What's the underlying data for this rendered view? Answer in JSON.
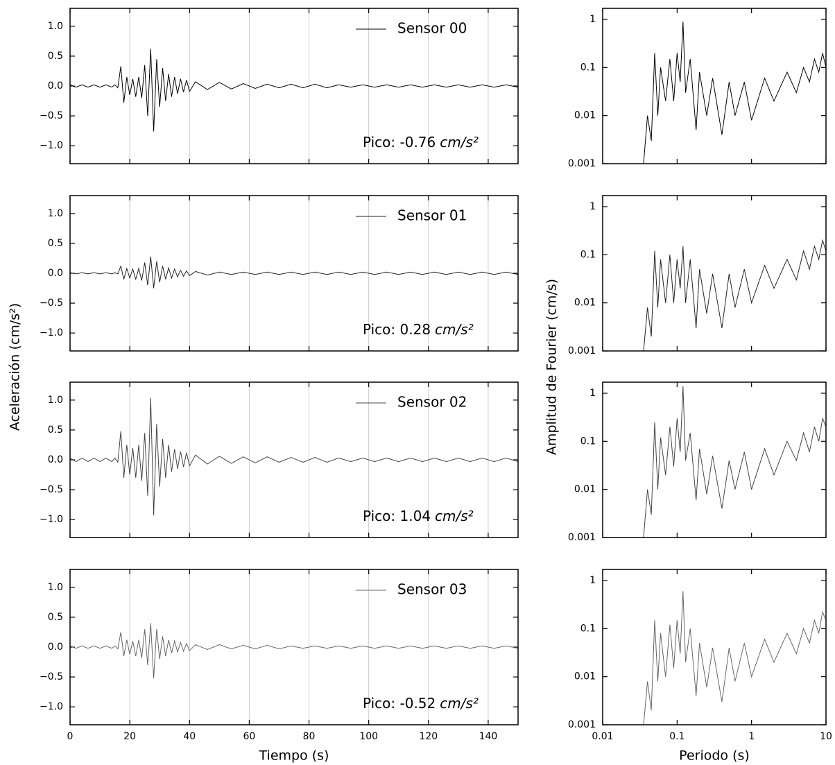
{
  "labels": {
    "acc": "Aceleración (cm/s²)",
    "time": "Tiempo (s)",
    "fourier": "Amplitud de Fourier (cm/s)",
    "period": "Periodo (s)"
  },
  "chart_data": [
    {
      "type": "line",
      "x": [
        0,
        2,
        4,
        6,
        8,
        10,
        12,
        14,
        15,
        16,
        17,
        18,
        19,
        20,
        21,
        22,
        23,
        24,
        25,
        26,
        27,
        28,
        29,
        30,
        31,
        32,
        33,
        34,
        35,
        36,
        37,
        38,
        39,
        40,
        42,
        46,
        50,
        54,
        58,
        62,
        66,
        70,
        74,
        78,
        82,
        86,
        90,
        94,
        98,
        102,
        106,
        110,
        114,
        118,
        122,
        126,
        130,
        134,
        138,
        142,
        146,
        150
      ],
      "series": [
        {
          "name": "Sensor 00",
          "color": "#000000",
          "values": [
            0.02,
            -0.02,
            0.02,
            -0.02,
            0.02,
            -0.02,
            0.02,
            -0.02,
            0.02,
            -0.03,
            0.33,
            -0.28,
            0.15,
            -0.15,
            0.12,
            -0.18,
            0.15,
            -0.2,
            0.35,
            -0.5,
            0.62,
            -0.76,
            0.45,
            -0.35,
            0.3,
            -0.25,
            0.2,
            -0.18,
            0.15,
            -0.13,
            0.12,
            -0.1,
            0.1,
            -0.09,
            0.07,
            -0.06,
            0.06,
            -0.05,
            0.04,
            -0.04,
            0.03,
            -0.03,
            0.03,
            -0.03,
            0.03,
            -0.03,
            0.02,
            -0.02,
            0.02,
            -0.02,
            0.02,
            -0.02,
            0.02,
            -0.02,
            0.02,
            -0.02,
            0.02,
            -0.02,
            0.02,
            -0.02,
            0.02,
            -0.02
          ]
        }
      ],
      "xlim": [
        0,
        150
      ],
      "ylim": [
        -1.3,
        1.3
      ],
      "xticks": [
        0,
        20,
        40,
        60,
        80,
        100,
        120,
        140
      ],
      "yticks": [
        {
          "value": -1,
          "label": "−1.0"
        },
        {
          "value": -0.5,
          "label": "−0.5"
        },
        {
          "value": 0,
          "label": "0.0"
        },
        0.5,
        {
          "value": 1,
          "label": "1.0"
        }
      ],
      "grid": true,
      "peak_label": "Pico: -0.76",
      "peak_unit": "cm/s²"
    },
    {
      "type": "line",
      "x": [
        0,
        2,
        4,
        6,
        8,
        10,
        12,
        14,
        15,
        16,
        17,
        18,
        19,
        20,
        21,
        22,
        23,
        24,
        25,
        26,
        27,
        28,
        29,
        30,
        31,
        32,
        33,
        34,
        35,
        36,
        37,
        38,
        39,
        40,
        42,
        46,
        50,
        54,
        58,
        62,
        66,
        70,
        74,
        78,
        82,
        86,
        90,
        94,
        98,
        102,
        106,
        110,
        114,
        118,
        122,
        126,
        130,
        134,
        138,
        142,
        146,
        150
      ],
      "series": [
        {
          "name": "Sensor 01",
          "color": "#222222",
          "values": [
            0.01,
            -0.01,
            0.01,
            -0.01,
            0.01,
            -0.01,
            0.01,
            -0.01,
            0.01,
            -0.01,
            0.12,
            -0.1,
            0.08,
            -0.08,
            0.07,
            -0.1,
            0.08,
            -0.12,
            0.18,
            -0.2,
            0.28,
            -0.25,
            0.2,
            -0.15,
            0.12,
            -0.1,
            0.09,
            -0.08,
            0.07,
            -0.06,
            0.05,
            -0.05,
            0.04,
            -0.04,
            0.03,
            -0.03,
            0.02,
            -0.02,
            0.02,
            -0.02,
            0.02,
            -0.02,
            0.02,
            -0.02,
            0.02,
            -0.02,
            0.02,
            -0.02,
            0.02,
            -0.02,
            0.02,
            -0.02,
            0.02,
            -0.02,
            0.02,
            -0.02,
            0.02,
            -0.02,
            0.02,
            -0.02,
            0.02,
            -0.02
          ]
        }
      ],
      "xlim": [
        0,
        150
      ],
      "ylim": [
        -1.3,
        1.3
      ],
      "xticks": [
        0,
        20,
        40,
        60,
        80,
        100,
        120,
        140
      ],
      "yticks": [
        {
          "value": -1,
          "label": "−1.0"
        },
        {
          "value": -0.5,
          "label": "−0.5"
        },
        {
          "value": 0,
          "label": "0.0"
        },
        0.5,
        {
          "value": 1,
          "label": "1.0"
        }
      ],
      "grid": true,
      "peak_label": "Pico: 0.28",
      "peak_unit": "cm/s²"
    },
    {
      "type": "line",
      "x": [
        0,
        2,
        4,
        6,
        8,
        10,
        12,
        14,
        15,
        16,
        17,
        18,
        19,
        20,
        21,
        22,
        23,
        24,
        25,
        26,
        27,
        28,
        29,
        30,
        31,
        32,
        33,
        34,
        35,
        36,
        37,
        38,
        39,
        40,
        42,
        46,
        50,
        54,
        58,
        62,
        66,
        70,
        74,
        78,
        82,
        86,
        90,
        94,
        98,
        102,
        106,
        110,
        114,
        118,
        122,
        126,
        130,
        134,
        138,
        142,
        146,
        150
      ],
      "series": [
        {
          "name": "Sensor 02",
          "color": "#444444",
          "values": [
            0.03,
            -0.03,
            0.03,
            -0.03,
            0.03,
            -0.03,
            0.03,
            -0.03,
            0.03,
            -0.04,
            0.48,
            -0.3,
            0.25,
            -0.25,
            0.2,
            -0.3,
            0.25,
            -0.35,
            0.45,
            -0.6,
            1.04,
            -0.93,
            0.6,
            -0.45,
            0.35,
            -0.3,
            0.25,
            -0.2,
            0.18,
            -0.15,
            0.14,
            -0.12,
            0.12,
            -0.1,
            0.08,
            -0.07,
            0.06,
            -0.06,
            0.05,
            -0.05,
            0.05,
            -0.04,
            0.04,
            -0.04,
            0.04,
            -0.04,
            0.03,
            -0.03,
            0.03,
            -0.03,
            0.03,
            -0.03,
            0.03,
            -0.03,
            0.03,
            -0.03,
            0.03,
            -0.03,
            0.03,
            -0.03,
            0.03,
            -0.03
          ]
        }
      ],
      "xlim": [
        0,
        150
      ],
      "ylim": [
        -1.3,
        1.3
      ],
      "xticks": [
        0,
        20,
        40,
        60,
        80,
        100,
        120,
        140
      ],
      "yticks": [
        {
          "value": -1,
          "label": "−1.0"
        },
        {
          "value": -0.5,
          "label": "−0.5"
        },
        {
          "value": 0,
          "label": "0.0"
        },
        0.5,
        {
          "value": 1,
          "label": "1.0"
        }
      ],
      "grid": true,
      "peak_label": "Pico: 1.04",
      "peak_unit": "cm/s²"
    },
    {
      "type": "line",
      "x": [
        0,
        2,
        4,
        6,
        8,
        10,
        12,
        14,
        15,
        16,
        17,
        18,
        19,
        20,
        21,
        22,
        23,
        24,
        25,
        26,
        27,
        28,
        29,
        30,
        31,
        32,
        33,
        34,
        35,
        36,
        37,
        38,
        39,
        40,
        42,
        46,
        50,
        54,
        58,
        62,
        66,
        70,
        74,
        78,
        82,
        86,
        90,
        94,
        98,
        102,
        106,
        110,
        114,
        118,
        122,
        126,
        130,
        134,
        138,
        142,
        146,
        150
      ],
      "series": [
        {
          "name": "Sensor 03",
          "color": "#666666",
          "values": [
            0.02,
            -0.02,
            0.02,
            -0.02,
            0.02,
            -0.02,
            0.02,
            -0.02,
            0.02,
            -0.03,
            0.25,
            -0.15,
            0.12,
            -0.12,
            0.1,
            -0.15,
            0.12,
            -0.18,
            0.3,
            -0.3,
            0.4,
            -0.52,
            0.3,
            -0.2,
            0.18,
            -0.15,
            0.12,
            -0.1,
            0.1,
            -0.08,
            0.08,
            -0.07,
            0.06,
            -0.06,
            0.04,
            -0.04,
            0.04,
            -0.03,
            0.03,
            -0.03,
            0.03,
            -0.03,
            0.02,
            -0.02,
            0.02,
            -0.02,
            0.02,
            -0.02,
            0.02,
            -0.02,
            0.02,
            -0.02,
            0.02,
            -0.02,
            0.02,
            -0.02,
            0.02,
            -0.02,
            0.02,
            -0.02,
            0.02,
            -0.02
          ]
        }
      ],
      "xlim": [
        0,
        150
      ],
      "ylim": [
        -1.3,
        1.3
      ],
      "xticks": [
        0,
        20,
        40,
        60,
        80,
        100,
        120,
        140
      ],
      "yticks": [
        {
          "value": -1,
          "label": "−1.0"
        },
        {
          "value": -0.5,
          "label": "−0.5"
        },
        {
          "value": 0,
          "label": "0.0"
        },
        0.5,
        {
          "value": 1,
          "label": "1.0"
        }
      ],
      "grid": true,
      "peak_label": "Pico: -0.52",
      "peak_unit": "cm/s²"
    },
    {
      "type": "line",
      "xlog": true,
      "ylog": true,
      "x": [
        0.035,
        0.04,
        0.045,
        0.05,
        0.055,
        0.06,
        0.07,
        0.08,
        0.09,
        0.1,
        0.11,
        0.12,
        0.13,
        0.15,
        0.18,
        0.2,
        0.25,
        0.3,
        0.4,
        0.5,
        0.6,
        0.8,
        1,
        1.5,
        2,
        3,
        4,
        5,
        6,
        7,
        8,
        9,
        10
      ],
      "series": [
        {
          "name": "Sensor 00",
          "color": "#000000",
          "values": [
            0.0008,
            0.01,
            0.003,
            0.2,
            0.01,
            0.1,
            0.02,
            0.15,
            0.02,
            0.2,
            0.05,
            0.9,
            0.03,
            0.15,
            0.005,
            0.08,
            0.01,
            0.06,
            0.004,
            0.05,
            0.01,
            0.05,
            0.008,
            0.06,
            0.02,
            0.08,
            0.03,
            0.1,
            0.05,
            0.15,
            0.08,
            0.2,
            0.1
          ]
        }
      ],
      "xlim": [
        0.01,
        10
      ],
      "ylim": [
        0.001,
        1.7
      ],
      "xticks": [
        0.01,
        0.1,
        1,
        10
      ],
      "yticks": [
        0.001,
        0.01,
        0.1,
        1
      ]
    },
    {
      "type": "line",
      "xlog": true,
      "ylog": true,
      "x": [
        0.035,
        0.04,
        0.045,
        0.05,
        0.055,
        0.06,
        0.07,
        0.08,
        0.09,
        0.1,
        0.11,
        0.12,
        0.13,
        0.15,
        0.18,
        0.2,
        0.25,
        0.3,
        0.4,
        0.5,
        0.6,
        0.8,
        1,
        1.5,
        2,
        3,
        4,
        5,
        6,
        7,
        8,
        9,
        10
      ],
      "series": [
        {
          "name": "Sensor 01",
          "color": "#222222",
          "values": [
            0.0008,
            0.008,
            0.002,
            0.12,
            0.008,
            0.08,
            0.01,
            0.1,
            0.01,
            0.08,
            0.02,
            0.15,
            0.01,
            0.08,
            0.003,
            0.05,
            0.006,
            0.04,
            0.003,
            0.04,
            0.008,
            0.05,
            0.01,
            0.06,
            0.02,
            0.08,
            0.03,
            0.12,
            0.05,
            0.15,
            0.08,
            0.2,
            0.12
          ]
        }
      ],
      "xlim": [
        0.01,
        10
      ],
      "ylim": [
        0.001,
        1.7
      ],
      "xticks": [
        0.01,
        0.1,
        1,
        10
      ],
      "yticks": [
        0.001,
        0.01,
        0.1,
        1
      ]
    },
    {
      "type": "line",
      "xlog": true,
      "ylog": true,
      "x": [
        0.035,
        0.04,
        0.045,
        0.05,
        0.055,
        0.06,
        0.07,
        0.08,
        0.09,
        0.1,
        0.11,
        0.12,
        0.13,
        0.15,
        0.18,
        0.2,
        0.25,
        0.3,
        0.4,
        0.5,
        0.6,
        0.8,
        1,
        1.5,
        2,
        3,
        4,
        5,
        6,
        7,
        8,
        9,
        10
      ],
      "series": [
        {
          "name": "Sensor 02",
          "color": "#444444",
          "values": [
            0.0008,
            0.01,
            0.003,
            0.25,
            0.01,
            0.12,
            0.02,
            0.2,
            0.03,
            0.3,
            0.06,
            1.4,
            0.04,
            0.15,
            0.006,
            0.07,
            0.008,
            0.05,
            0.004,
            0.04,
            0.01,
            0.06,
            0.01,
            0.07,
            0.02,
            0.1,
            0.04,
            0.15,
            0.06,
            0.2,
            0.1,
            0.3,
            0.2
          ]
        }
      ],
      "xlim": [
        0.01,
        10
      ],
      "ylim": [
        0.001,
        1.7
      ],
      "xticks": [
        0.01,
        0.1,
        1,
        10
      ],
      "yticks": [
        0.001,
        0.01,
        0.1,
        1
      ]
    },
    {
      "type": "line",
      "xlog": true,
      "ylog": true,
      "x": [
        0.035,
        0.04,
        0.045,
        0.05,
        0.055,
        0.06,
        0.07,
        0.08,
        0.09,
        0.1,
        0.11,
        0.12,
        0.13,
        0.15,
        0.18,
        0.2,
        0.25,
        0.3,
        0.4,
        0.5,
        0.6,
        0.8,
        1,
        1.5,
        2,
        3,
        4,
        5,
        6,
        7,
        8,
        9,
        10
      ],
      "series": [
        {
          "name": "Sensor 03",
          "color": "#666666",
          "values": [
            0.0008,
            0.008,
            0.002,
            0.15,
            0.008,
            0.08,
            0.01,
            0.12,
            0.015,
            0.15,
            0.03,
            0.6,
            0.02,
            0.1,
            0.004,
            0.05,
            0.006,
            0.04,
            0.003,
            0.04,
            0.008,
            0.05,
            0.01,
            0.06,
            0.02,
            0.08,
            0.03,
            0.1,
            0.05,
            0.15,
            0.08,
            0.22,
            0.15
          ]
        }
      ],
      "xlim": [
        0.01,
        10
      ],
      "ylim": [
        0.001,
        1.7
      ],
      "xticks": [
        0.01,
        0.1,
        1,
        10
      ],
      "yticks": [
        0.001,
        0.01,
        0.1,
        1
      ]
    }
  ]
}
